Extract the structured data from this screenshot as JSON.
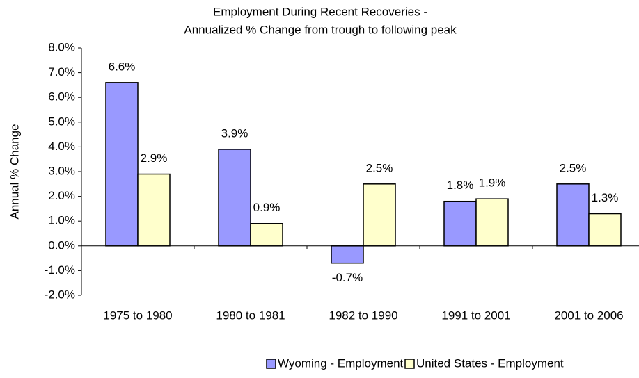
{
  "chart_data": {
    "type": "bar",
    "title": [
      "Employment During Recent Recoveries -",
      "Annualized % Change from trough to following peak"
    ],
    "y_label": "Annual % Change",
    "categories": [
      "1975 to 1980",
      "1980 to 1981",
      "1982 to 1990",
      "1991 to 2001",
      "2001 to 2006"
    ],
    "series": [
      {
        "name": "Wyoming - Employment",
        "color": "#9999ff",
        "values": [
          6.6,
          3.9,
          -0.7,
          1.8,
          2.5
        ],
        "value_labels": [
          "6.6%",
          "3.9%",
          "-0.7%",
          "1.8%",
          "2.5%"
        ]
      },
      {
        "name": "United States - Employment",
        "color": "#ffffcc",
        "values": [
          2.9,
          0.9,
          2.5,
          1.9,
          1.3
        ],
        "value_labels": [
          "2.9%",
          "0.9%",
          "2.5%",
          "1.9%",
          "1.3%"
        ]
      }
    ],
    "ylim": [
      -2,
      8
    ],
    "yticks": [
      {
        "value": -2,
        "label": "-2.0%"
      },
      {
        "value": -1,
        "label": "-1.0%"
      },
      {
        "value": 0,
        "label": "0.0%"
      },
      {
        "value": 1,
        "label": "1.0%"
      },
      {
        "value": 2,
        "label": "2.0%"
      },
      {
        "value": 3,
        "label": "3.0%"
      },
      {
        "value": 4,
        "label": "4.0%"
      },
      {
        "value": 5,
        "label": "5.0%"
      },
      {
        "value": 6,
        "label": "6.0%"
      },
      {
        "value": 7,
        "label": "7.0%"
      },
      {
        "value": 8,
        "label": "8.0%"
      }
    ],
    "grid": false,
    "legend": "bottom"
  }
}
